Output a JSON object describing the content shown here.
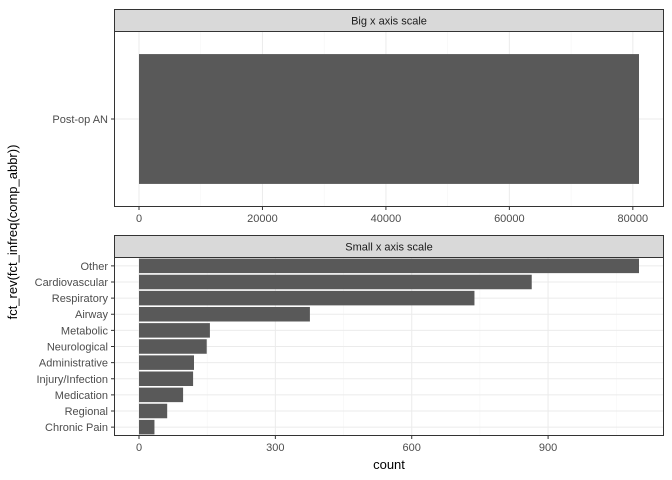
{
  "chart_data": [
    {
      "type": "bar",
      "orientation": "horizontal",
      "facet_title": "Big x axis scale",
      "categories": [
        "Post-op AN"
      ],
      "values": [
        81000
      ],
      "xlim": [
        0,
        84000
      ],
      "xticks": [
        0,
        20000,
        40000,
        60000,
        80000
      ],
      "xtick_labels": [
        "0",
        "20000",
        "40000",
        "60000",
        "80000"
      ]
    },
    {
      "type": "bar",
      "orientation": "horizontal",
      "facet_title": "Small x axis scale",
      "categories": [
        "Other",
        "Cardiovascular",
        "Respiratory",
        "Airway",
        "Metabolic",
        "Neurological",
        "Administrative",
        "Injury/Infection",
        "Medication",
        "Regional",
        "Chronic Pain"
      ],
      "values": [
        1100,
        864,
        738,
        376,
        156,
        149,
        121,
        119,
        97,
        62,
        34
      ],
      "xlim": [
        0,
        1150
      ],
      "xticks": [
        0,
        300,
        600,
        900
      ],
      "xtick_labels": [
        "0",
        "300",
        "600",
        "900"
      ]
    }
  ],
  "axes": {
    "xlabel": "count",
    "ylabel": "fct_rev(fct_infreq(comp_abbr))"
  },
  "colors": {
    "bar": "#595959",
    "strip_fill": "#d9d9d9",
    "strip_border": "#333333",
    "panel_border": "#333333",
    "grid_major": "#ebebeb",
    "grid_minor": "#f5f5f5"
  }
}
